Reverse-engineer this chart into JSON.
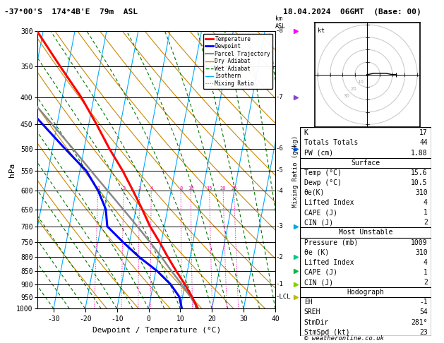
{
  "title_left": "-37°00'S  174°4B'E  79m  ASL",
  "title_right": "18.04.2024  06GMT  (Base: 00)",
  "xlabel": "Dewpoint / Temperature (°C)",
  "ylabel_left": "hPa",
  "xlim": [
    -35,
    40
  ],
  "pressure_levels": [
    300,
    350,
    400,
    450,
    500,
    550,
    600,
    650,
    700,
    750,
    800,
    850,
    900,
    950,
    1000
  ],
  "bg_color": "#ffffff",
  "temp_color": "#ff0000",
  "dewp_color": "#0000ff",
  "parcel_color": "#888888",
  "dry_adiabat_color": "#cc8800",
  "wet_adiabat_color": "#007700",
  "isotherm_color": "#00aaff",
  "mixing_ratio_color": "#ee00aa",
  "skew_factor": 32,
  "stats_K": 17,
  "stats_TT": 44,
  "stats_PW": "1.88",
  "stats_sfc_temp": "15.6",
  "stats_sfc_dewp": "10.5",
  "stats_sfc_thetae": 310,
  "stats_sfc_li": 4,
  "stats_sfc_cape": 1,
  "stats_sfc_cin": 2,
  "stats_mu_pres": 1009,
  "stats_mu_thetae": 310,
  "stats_mu_li": 4,
  "stats_mu_cape": 1,
  "stats_mu_cin": 2,
  "stats_eh": -1,
  "stats_sreh": 54,
  "stats_stmdir": "281°",
  "stats_stmspd": 23,
  "footer": "© weatheronline.co.uk",
  "km_labels": {
    "300": "8",
    "400": "7",
    "500": "6",
    "550": "5",
    "600": "4",
    "700": "3",
    "800": "2",
    "900": "1",
    "950": "LCL"
  },
  "mr_values": [
    1,
    2,
    3,
    4,
    8,
    10,
    15,
    20,
    25
  ],
  "temp_p": [
    1000,
    950,
    900,
    850,
    800,
    750,
    700,
    650,
    600,
    550,
    500,
    450,
    400,
    350,
    300
  ],
  "temp_t": [
    15.6,
    13.0,
    10.0,
    6.5,
    3.0,
    -0.5,
    -4.5,
    -8.0,
    -12.0,
    -16.5,
    -22.0,
    -27.5,
    -34.0,
    -42.5,
    -52.0
  ],
  "dewp_p": [
    1000,
    950,
    900,
    850,
    800,
    750,
    700,
    650,
    600,
    550,
    500,
    450,
    400
  ],
  "dewp_t": [
    10.5,
    9.0,
    5.5,
    0.5,
    -6.0,
    -12.0,
    -18.0,
    -19.5,
    -23.0,
    -28.0,
    -36.0,
    -44.5,
    -54.0
  ],
  "parcel_p": [
    1000,
    950,
    900,
    850,
    800,
    750,
    700,
    650,
    600,
    550,
    500,
    450,
    400,
    350,
    300
  ],
  "parcel_t": [
    15.6,
    12.5,
    9.0,
    5.0,
    1.0,
    -3.5,
    -8.5,
    -14.0,
    -20.0,
    -26.5,
    -33.5,
    -41.5,
    -50.5,
    -61.0,
    -73.0
  ]
}
